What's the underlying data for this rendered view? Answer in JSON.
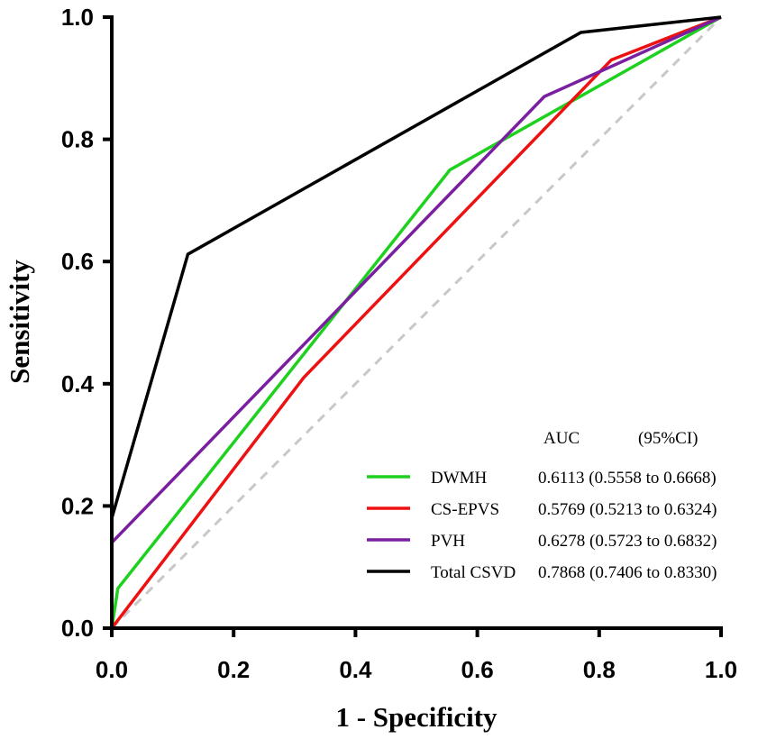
{
  "chart_data": {
    "type": "line",
    "xlabel": "1 - Specificity",
    "ylabel": "Sensitivity",
    "xlim": [
      0,
      1
    ],
    "ylim": [
      0,
      1
    ],
    "xticks": [
      "0.0",
      "0.2",
      "0.4",
      "0.6",
      "0.8",
      "1.0"
    ],
    "yticks": [
      "0.0",
      "0.2",
      "0.4",
      "0.6",
      "0.8",
      "1.0"
    ],
    "legend_header": {
      "auc": "AUC",
      "ci": "(95%CI)"
    },
    "legend_position": "bottom-right",
    "reference_line": {
      "x": [
        0,
        1
      ],
      "y": [
        0,
        1
      ],
      "color": "#c8c8c8",
      "style": "dashed"
    },
    "series": [
      {
        "name": "DWMH",
        "color": "#1fd11f",
        "auc_text": "0.6113 (0.5558 to 0.6668)",
        "x": [
          0,
          0.01,
          0.555,
          1
        ],
        "y": [
          0,
          0.065,
          0.75,
          1
        ]
      },
      {
        "name": "CS-EPVS",
        "color": "#ee1111",
        "auc_text": "0.5769 (0.5213 to 0.6324)",
        "x": [
          0,
          0.315,
          0.82,
          1
        ],
        "y": [
          0,
          0.41,
          0.93,
          1
        ]
      },
      {
        "name": "PVH",
        "color": "#7a1fa0",
        "auc_text": "0.6278 (0.5723 to 0.6832)",
        "x": [
          0,
          0.71,
          1
        ],
        "y": [
          0.14,
          0.87,
          1
        ]
      },
      {
        "name": "Total CSVD",
        "color": "#000000",
        "auc_text": "0.7868 (0.7406 to 0.8330)",
        "x": [
          0,
          0.125,
          0.77,
          1
        ],
        "y": [
          0.18,
          0.612,
          0.975,
          1
        ]
      }
    ]
  }
}
